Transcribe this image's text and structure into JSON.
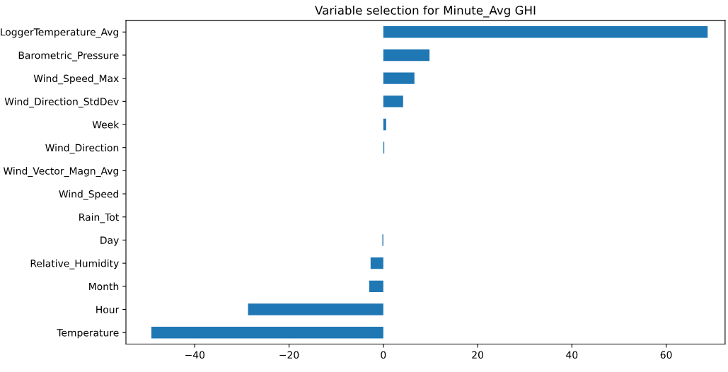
{
  "chart_data": {
    "type": "bar",
    "orientation": "horizontal",
    "title": "Variable selection for Minute_Avg GHI",
    "categories": [
      "LoggerTemperature_Avg",
      "Barometric_Pressure",
      "Wind_Speed_Max",
      "Wind_Direction_StdDev",
      "Week",
      "Wind_Direction",
      "Wind_Vector_Magn_Avg",
      "Wind_Speed",
      "Rain_Tot",
      "Day",
      "Relative_Humidity",
      "Month",
      "Hour",
      "Temperature"
    ],
    "values": [
      68.8,
      9.8,
      6.6,
      4.2,
      0.6,
      0.2,
      0,
      0,
      0,
      -0.2,
      -2.7,
      -3.0,
      -28.7,
      -49.2
    ],
    "color": "#1f77b4",
    "xlim": [
      -54.6,
      72.5
    ],
    "xticks": [
      {
        "value": -40,
        "label": "−40"
      },
      {
        "value": -20,
        "label": "−20"
      },
      0,
      20,
      40,
      60
    ],
    "grid": false,
    "legend": false
  }
}
